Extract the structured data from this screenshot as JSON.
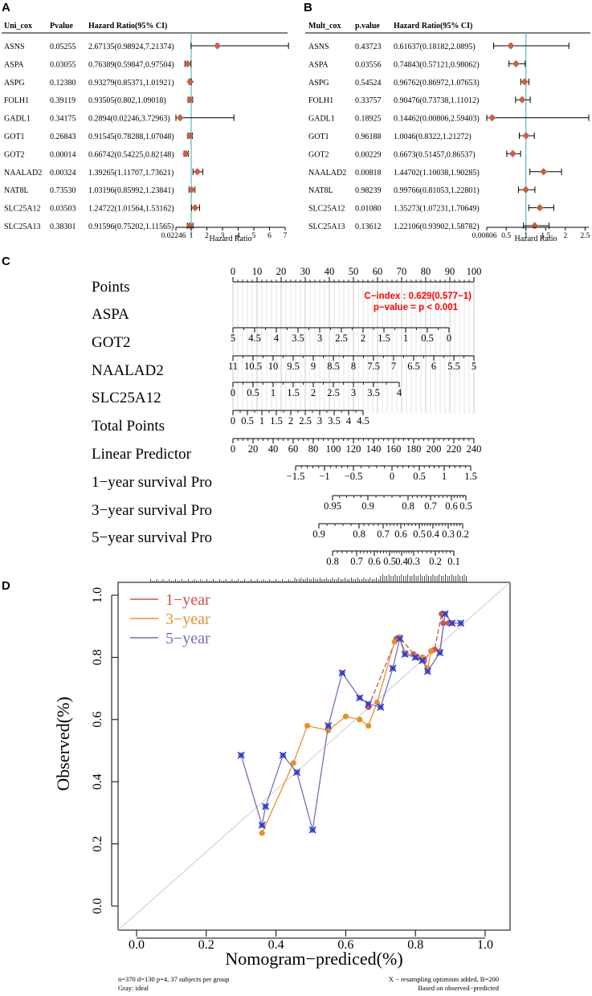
{
  "panels": {
    "A": {
      "letter": "A",
      "headers": [
        "Uni_cox",
        "Pvalue",
        "Hazard Ratio(95% CI)"
      ],
      "xlabel": "Hazard Ratio",
      "ticks": [
        "0.02246",
        "1",
        "2",
        "3",
        "4",
        "5",
        "6",
        "7"
      ]
    },
    "B": {
      "letter": "B",
      "headers": [
        "Mult_cox",
        "p.value",
        "Hazard Ratio(95% CI)"
      ],
      "xlabel": "Hazard Ratio",
      "ticks": [
        "0.00806",
        "0.5",
        "1",
        "1.5",
        "2",
        "2.5"
      ]
    },
    "C": {
      "letter": "C",
      "rows": [
        "Points",
        "ASPA",
        "GOT2",
        "NAALAD2",
        "SLC25A12",
        "Total Points",
        "Linear Predictor",
        "1−year survival Pro",
        "3−year survival Pro",
        "5−year survival Pro"
      ],
      "cindex": "C−index : 0.629(0.577−1)",
      "pvalue": "p−value = p < 0.001"
    },
    "D": {
      "letter": "D",
      "xlabel": "Nomogram−prediced(%)",
      "ylabel": "Observed(%)",
      "footnote_left_1": "n=370 d=130 p=4, 37 subjects per group",
      "footnote_left_2": "Gray: ideal",
      "footnote_right_1": "X − resampling optimism added, B=200",
      "footnote_right_2": "Based on observed−predicted"
    }
  },
  "colors": {
    "diamond": "#c8604a",
    "refline": "#5bbcc0",
    "oneyear": "#d0504a",
    "threeyear": "#e89030",
    "fiveyear": "#7070c0",
    "cross": "#2030d0",
    "ideal": "#cccccc"
  },
  "chart_data": [
    {
      "type": "forest",
      "title": "Uni_cox",
      "xlabel": "Hazard Ratio",
      "xlim": [
        0.02246,
        7
      ],
      "reference": 1,
      "rows": [
        {
          "gene": "ASNS",
          "p": "0.05255",
          "hr_text": "2.67135(0.98924,7.21374)",
          "hr": 2.67135,
          "lo": 0.98924,
          "hi": 7.21374
        },
        {
          "gene": "ASPA",
          "p": "0.03055",
          "hr_text": "0.76389(0.59847,0.97504)",
          "hr": 0.76389,
          "lo": 0.59847,
          "hi": 0.97504
        },
        {
          "gene": "ASPG",
          "p": "0.12380",
          "hr_text": "0.93279(0.85371,1.01921)",
          "hr": 0.93279,
          "lo": 0.85371,
          "hi": 1.01921
        },
        {
          "gene": "FOLH1",
          "p": "0.39119",
          "hr_text": "0.93505(0.802,1.09018)",
          "hr": 0.93505,
          "lo": 0.802,
          "hi": 1.09018
        },
        {
          "gene": "GADL1",
          "p": "0.34175",
          "hr_text": "0.2894(0.02246,3.72963)",
          "hr": 0.2894,
          "lo": 0.02246,
          "hi": 3.72963
        },
        {
          "gene": "GOT1",
          "p": "0.26843",
          "hr_text": "0.91545(0.78288,1.07048)",
          "hr": 0.91545,
          "lo": 0.78288,
          "hi": 1.07048
        },
        {
          "gene": "GOT2",
          "p": "0.00014",
          "hr_text": "0.66742(0.54225,0.82148)",
          "hr": 0.66742,
          "lo": 0.54225,
          "hi": 0.82148
        },
        {
          "gene": "NAALAD2",
          "p": "0.00324",
          "hr_text": "1.39265(1.11707,1.73621)",
          "hr": 1.39265,
          "lo": 1.11707,
          "hi": 1.73621
        },
        {
          "gene": "NAT8L",
          "p": "0.73530",
          "hr_text": "1.03196(0.85992,1.23841)",
          "hr": 1.03196,
          "lo": 0.85992,
          "hi": 1.23841
        },
        {
          "gene": "SLC25A12",
          "p": "0.03503",
          "hr_text": "1.24722(1.01564,1.53162)",
          "hr": 1.24722,
          "lo": 1.01564,
          "hi": 1.53162
        },
        {
          "gene": "SLC25A13",
          "p": "0.38301",
          "hr_text": "0.91596(0.75202,1.11565)",
          "hr": 0.91596,
          "lo": 0.75202,
          "hi": 1.11565
        }
      ]
    },
    {
      "type": "forest",
      "title": "Mult_cox",
      "xlabel": "Hazard Ratio",
      "xlim": [
        0.00806,
        2.59403
      ],
      "reference": 1,
      "rows": [
        {
          "gene": "ASNS",
          "p": "0.43723",
          "hr_text": "0.61637(0.18182,2.0895)",
          "hr": 0.61637,
          "lo": 0.18182,
          "hi": 2.0895
        },
        {
          "gene": "ASPA",
          "p": "0.03556",
          "hr_text": "0.74843(0.57121,0.98062)",
          "hr": 0.74843,
          "lo": 0.57121,
          "hi": 0.98062
        },
        {
          "gene": "ASPG",
          "p": "0.54524",
          "hr_text": "0.96762(0.86972,1.07653)",
          "hr": 0.96762,
          "lo": 0.86972,
          "hi": 1.07653
        },
        {
          "gene": "FOLH1",
          "p": "0.33757",
          "hr_text": "0.90476(0.73738,1.11012)",
          "hr": 0.90476,
          "lo": 0.73738,
          "hi": 1.11012
        },
        {
          "gene": "GADL1",
          "p": "0.18925",
          "hr_text": "0.14462(0.00806,2.59403)",
          "hr": 0.14462,
          "lo": 0.00806,
          "hi": 2.59403
        },
        {
          "gene": "GOT1",
          "p": "0.96188",
          "hr_text": "1.0046(0.8322,1.21272)",
          "hr": 1.0046,
          "lo": 0.8322,
          "hi": 1.21272
        },
        {
          "gene": "GOT2",
          "p": "0.00229",
          "hr_text": "0.6673(0.51457,0.86537)",
          "hr": 0.6673,
          "lo": 0.51457,
          "hi": 0.86537
        },
        {
          "gene": "NAALAD2",
          "p": "0.00818",
          "hr_text": "1.44702(1.10038,1.90285)",
          "hr": 1.44702,
          "lo": 1.10038,
          "hi": 1.90285
        },
        {
          "gene": "NAT8L",
          "p": "0.98239",
          "hr_text": "0.99766(0.81053,1.22801)",
          "hr": 0.99766,
          "lo": 0.81053,
          "hi": 1.22801
        },
        {
          "gene": "SLC25A12",
          "p": "0.01080",
          "hr_text": "1.35273(1.07231,1.70649)",
          "hr": 1.35273,
          "lo": 1.07231,
          "hi": 1.70649
        },
        {
          "gene": "SLC25A13",
          "p": "0.13612",
          "hr_text": "1.22106(0.93902,1.58782)",
          "hr": 1.22106,
          "lo": 0.93902,
          "hi": 1.58782
        }
      ]
    },
    {
      "type": "nomogram",
      "scales": [
        {
          "name": "Points",
          "range": [
            0,
            100
          ],
          "ticks": [
            "0",
            "10",
            "20",
            "30",
            "40",
            "50",
            "60",
            "70",
            "80",
            "90",
            "100"
          ]
        },
        {
          "name": "ASPA",
          "ticks": [
            "5",
            "4.5",
            "4",
            "3.5",
            "3",
            "2.5",
            "2",
            "1.5",
            "1",
            "0.5",
            "0"
          ]
        },
        {
          "name": "GOT2",
          "ticks": [
            "11",
            "10.5",
            "10",
            "9.5",
            "9",
            "8.5",
            "8",
            "7.5",
            "7",
            "6.5",
            "6",
            "5.5",
            "5"
          ]
        },
        {
          "name": "NAALAD2",
          "ticks": [
            "0",
            "0.5",
            "1",
            "1.5",
            "2",
            "2.5",
            "3",
            "3.5",
            "4"
          ]
        },
        {
          "name": "SLC25A12",
          "ticks": [
            "0",
            "0.5",
            "1",
            "1.5",
            "2",
            "2.5",
            "3",
            "3.5",
            "4",
            "4.5"
          ]
        },
        {
          "name": "Total Points",
          "range": [
            0,
            240
          ],
          "ticks": [
            "0",
            "20",
            "40",
            "60",
            "80",
            "100",
            "120",
            "140",
            "160",
            "180",
            "200",
            "220",
            "240"
          ]
        },
        {
          "name": "Linear Predictor",
          "ticks": [
            "−1.5",
            "−1",
            "−0.5",
            "0",
            "0.5",
            "1",
            "1.5"
          ]
        },
        {
          "name": "1−year survival Pro",
          "ticks": [
            "0.95",
            "0.9",
            "0.8",
            "0.7",
            "0.6",
            "0.5"
          ]
        },
        {
          "name": "3−year survival Pro",
          "ticks": [
            "0.9",
            "0.8",
            "0.7",
            "0.6",
            "0.5",
            "0.4",
            "0.3",
            "0.2"
          ]
        },
        {
          "name": "5−year survival Pro",
          "ticks": [
            "0.8",
            "0.7",
            "0.6",
            "0.5",
            "0.4",
            "0.3",
            "0.2",
            "0.1"
          ]
        }
      ]
    },
    {
      "type": "line",
      "xlabel": "Nomogram−prediced(%)",
      "ylabel": "Observed(%)",
      "xlim": [
        0,
        1
      ],
      "ylim": [
        0,
        1
      ],
      "x_ticks": [
        "0.0",
        "0.2",
        "0.4",
        "0.6",
        "0.8",
        "1.0"
      ],
      "y_ticks": [
        "0.0",
        "0.2",
        "0.4",
        "0.6",
        "0.8",
        "1.0"
      ],
      "legend_position": "top-left",
      "series": [
        {
          "name": "1−year",
          "x": [
            0.665,
            0.745,
            0.755,
            0.795,
            0.805,
            0.82,
            0.825,
            0.845,
            0.855,
            0.875,
            0.88,
            0.895,
            0.905
          ],
          "y": [
            0.64,
            0.86,
            0.865,
            0.81,
            0.8,
            0.8,
            0.79,
            0.82,
            0.825,
            0.94,
            0.91,
            0.91,
            0.91
          ]
        },
        {
          "name": "3−year",
          "x": [
            0.36,
            0.45,
            0.49,
            0.55,
            0.6,
            0.64,
            0.665,
            0.69,
            0.74,
            0.755,
            0.77,
            0.8,
            0.82,
            0.835,
            0.845,
            0.87,
            0.885,
            0.905,
            0.93
          ],
          "y": [
            0.235,
            0.46,
            0.58,
            0.565,
            0.61,
            0.6,
            0.58,
            0.655,
            0.85,
            0.865,
            0.815,
            0.805,
            0.8,
            0.765,
            0.82,
            0.82,
            0.94,
            0.91,
            0.91
          ]
        },
        {
          "name": "5−year",
          "x": [
            0.3,
            0.36,
            0.37,
            0.42,
            0.46,
            0.505,
            0.55,
            0.59,
            0.64,
            0.665,
            0.7,
            0.735,
            0.755,
            0.77,
            0.8,
            0.82,
            0.835,
            0.87,
            0.885,
            0.905,
            0.93
          ],
          "y": [
            0.485,
            0.26,
            0.32,
            0.485,
            0.43,
            0.245,
            0.58,
            0.75,
            0.67,
            0.65,
            0.64,
            0.765,
            0.86,
            0.81,
            0.8,
            0.79,
            0.755,
            0.815,
            0.94,
            0.91,
            0.91
          ]
        }
      ],
      "ideal_line": "diagonal"
    }
  ]
}
